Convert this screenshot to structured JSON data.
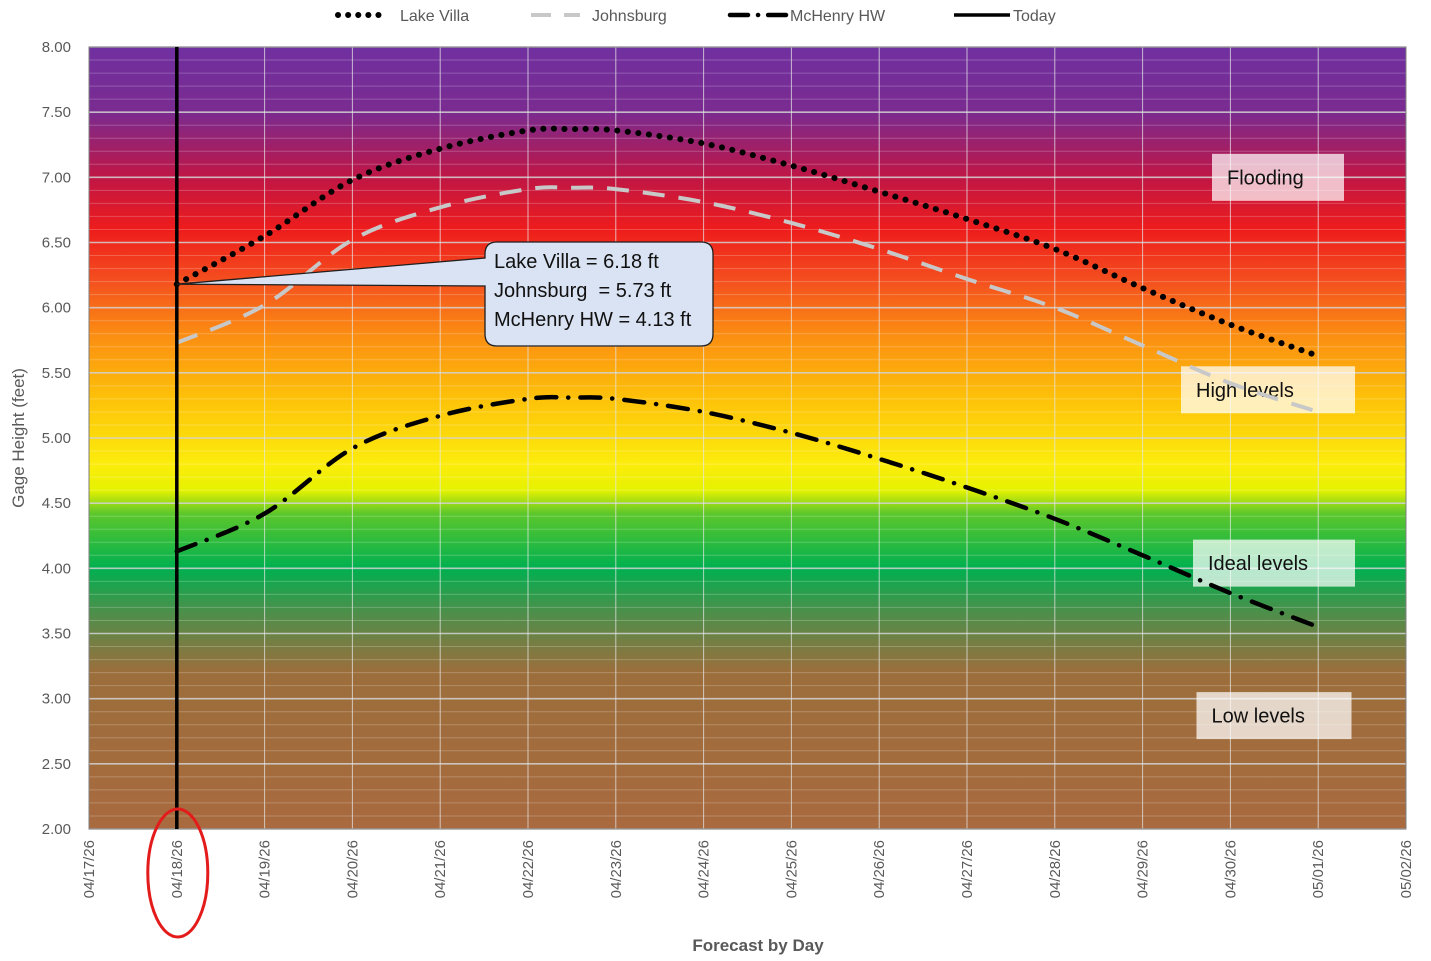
{
  "chart_data": {
    "type": "line",
    "title": "",
    "xlabel": "Forecast by Day",
    "ylabel": "Gage Height (feet)",
    "ylim": [
      2.0,
      8.0
    ],
    "y_ticks": [
      "2.00",
      "2.50",
      "3.00",
      "3.50",
      "4.00",
      "4.50",
      "5.00",
      "5.50",
      "6.00",
      "6.50",
      "7.00",
      "7.50",
      "8.00"
    ],
    "x_ticks": [
      "04/17/26",
      "04/18/26",
      "04/19/26",
      "04/20/26",
      "04/21/26",
      "04/22/26",
      "04/23/26",
      "04/24/26",
      "04/25/26",
      "04/26/26",
      "04/27/26",
      "04/28/26",
      "04/29/26",
      "04/30/26",
      "05/01/26",
      "05/02/26"
    ],
    "legend_position": "top",
    "grid": true,
    "series": [
      {
        "name": "Lake Villa",
        "style": "dotted",
        "color": "#000000",
        "points": [
          [
            "04/18/26",
            6.18
          ],
          [
            "04/19/26",
            6.55
          ],
          [
            "04/20/26",
            6.98
          ],
          [
            "04/21/26",
            7.22
          ],
          [
            "04/22/26",
            7.36
          ],
          [
            "04/22/26 12:00",
            7.37
          ],
          [
            "04/23/26",
            7.36
          ],
          [
            "04/24/26",
            7.26
          ],
          [
            "04/25/26",
            7.09
          ],
          [
            "04/26/26",
            6.89
          ],
          [
            "04/27/26",
            6.68
          ],
          [
            "04/28/26",
            6.45
          ],
          [
            "04/29/26",
            6.15
          ],
          [
            "04/30/26",
            5.87
          ],
          [
            "05/01/26",
            5.63
          ]
        ]
      },
      {
        "name": "Johnsburg",
        "style": "dashed",
        "color": "#c8c8c8",
        "points": [
          [
            "04/18/26",
            5.73
          ],
          [
            "04/19/26",
            6.02
          ],
          [
            "04/20/26",
            6.52
          ],
          [
            "04/21/26",
            6.77
          ],
          [
            "04/22/26",
            6.91
          ],
          [
            "04/22/26 12:00",
            6.92
          ],
          [
            "04/23/26",
            6.91
          ],
          [
            "04/24/26",
            6.81
          ],
          [
            "04/25/26",
            6.65
          ],
          [
            "04/26/26",
            6.45
          ],
          [
            "04/27/26",
            6.22
          ],
          [
            "04/28/26",
            6.0
          ],
          [
            "04/29/26",
            5.71
          ],
          [
            "04/30/26",
            5.42
          ],
          [
            "05/01/26",
            5.2
          ]
        ]
      },
      {
        "name": "McHenry HW",
        "style": "dash-dot",
        "color": "#000000",
        "points": [
          [
            "04/18/26",
            4.13
          ],
          [
            "04/19/26",
            4.42
          ],
          [
            "04/20/26",
            4.92
          ],
          [
            "04/21/26",
            5.17
          ],
          [
            "04/22/26",
            5.3
          ],
          [
            "04/22/26 12:00",
            5.31
          ],
          [
            "04/23/26",
            5.3
          ],
          [
            "04/24/26",
            5.2
          ],
          [
            "04/25/26",
            5.04
          ],
          [
            "04/26/26",
            4.84
          ],
          [
            "04/27/26",
            4.62
          ],
          [
            "04/28/26",
            4.38
          ],
          [
            "04/29/26",
            4.1
          ],
          [
            "04/30/26",
            3.81
          ],
          [
            "05/01/26",
            3.55
          ]
        ]
      }
    ],
    "today": {
      "name": "Today",
      "date": "04/18/26",
      "color": "#000000",
      "highlight_color": "#e31b1b"
    },
    "callout": {
      "date": "04/18/26",
      "value": 6.18,
      "lines": [
        "Lake Villa = 6.18 ft",
        "Johnsburg  = 5.73 ft",
        "McHenry HW = 4.13 ft"
      ],
      "fill": "#dae3f3",
      "border": "#1f1f1f"
    },
    "zones": [
      {
        "label": "Flooding",
        "y": 7.0
      },
      {
        "label": "High levels",
        "y": 5.37
      },
      {
        "label": "Ideal levels",
        "y": 4.04
      },
      {
        "label": "Low levels",
        "y": 2.87
      }
    ],
    "background_gradient": [
      {
        "value": 8.0,
        "color": "#7030a0"
      },
      {
        "value": 7.5,
        "color": "#7a2b90"
      },
      {
        "value": 7.0,
        "color": "#c01645"
      },
      {
        "value": 6.6,
        "color": "#ee1c1c"
      },
      {
        "value": 6.2,
        "color": "#f4501e"
      },
      {
        "value": 5.8,
        "color": "#fb8c12"
      },
      {
        "value": 5.3,
        "color": "#fdc209"
      },
      {
        "value": 4.8,
        "color": "#fcec0c"
      },
      {
        "value": 4.6,
        "color": "#e6f200"
      },
      {
        "value": 4.42,
        "color": "#5cc72b"
      },
      {
        "value": 4.0,
        "color": "#00b050"
      },
      {
        "value": 3.65,
        "color": "#4f8e4a"
      },
      {
        "value": 3.2,
        "color": "#9c6e3c"
      },
      {
        "value": 2.0,
        "color": "#a86a3e"
      }
    ]
  }
}
